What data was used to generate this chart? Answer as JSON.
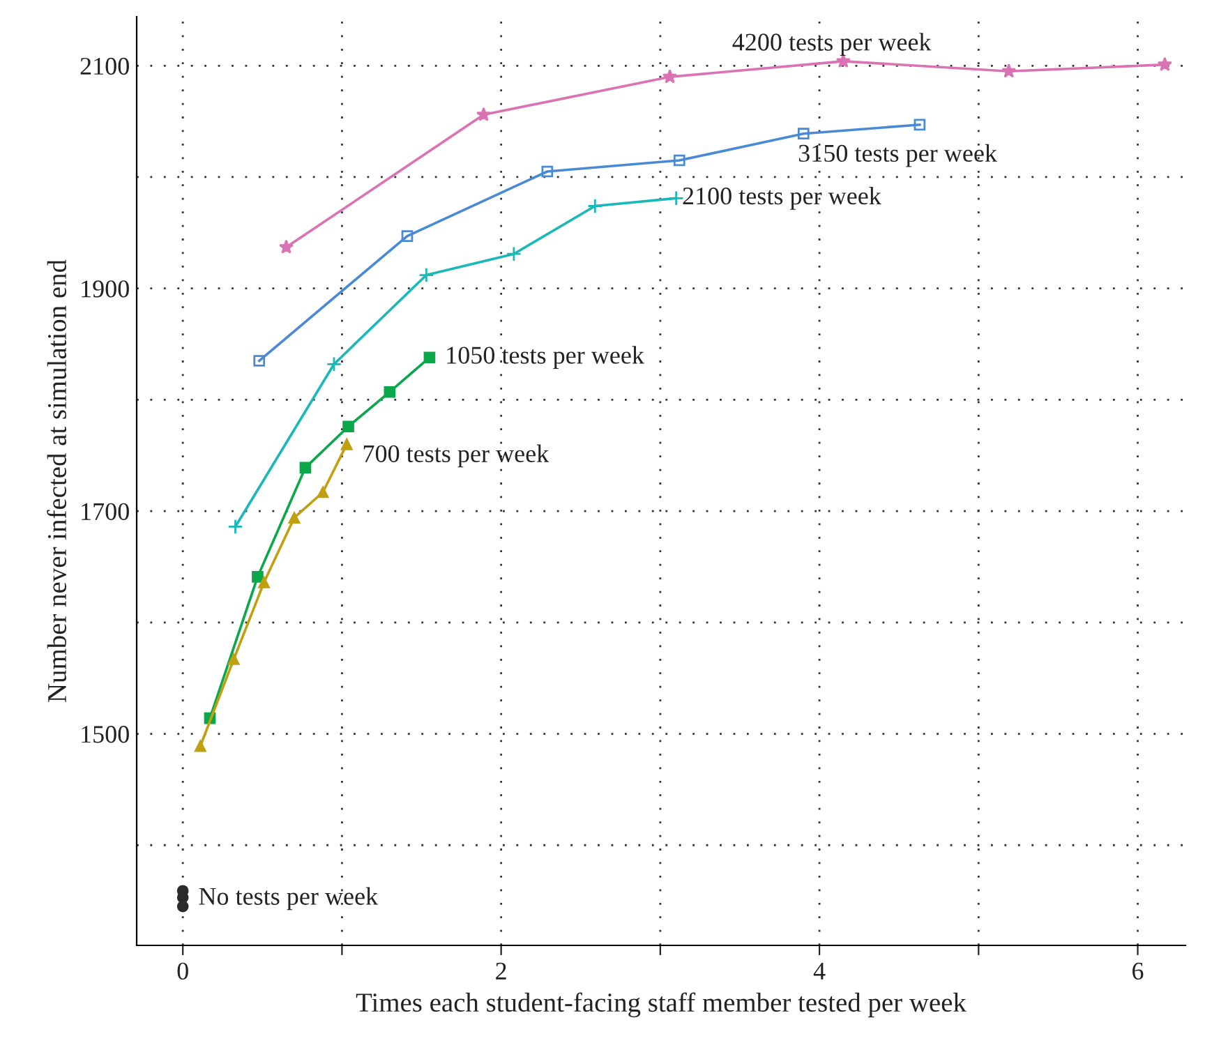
{
  "chart_data": {
    "type": "line",
    "xlabel": "Times each student-facing staff member tested per week",
    "ylabel": "Number never infected at simulation end",
    "xlim": [
      -0.29,
      6.3
    ],
    "ylim": [
      1310,
      2144
    ],
    "xticks": [
      0,
      {
        "value": 1,
        "label": null
      },
      2,
      {
        "value": 3,
        "label": null
      },
      4,
      {
        "value": 5,
        "label": null
      },
      6
    ],
    "yticks": [
      {
        "value": 1400,
        "label": null
      },
      1500,
      {
        "value": 1600,
        "label": null
      },
      1700,
      {
        "value": 1800,
        "label": null
      },
      1900,
      {
        "value": 2000,
        "label": null
      },
      2100
    ],
    "grid": true,
    "legend": false,
    "series": [
      {
        "name": "4200 tests per week",
        "color": "#d973b3",
        "marker": "star",
        "x": [
          0.65,
          1.89,
          3.06,
          4.15,
          5.19,
          6.17
        ],
        "values": [
          1937,
          2056,
          2090,
          2104,
          2095,
          2101
        ]
      },
      {
        "name": "3150 tests per week",
        "color": "#4a8ad4",
        "marker": "square",
        "x": [
          0.48,
          1.41,
          2.29,
          3.12,
          3.9,
          4.63
        ],
        "values": [
          1835,
          1947,
          2005,
          2015,
          2039,
          2047
        ]
      },
      {
        "name": "2100 tests per week",
        "color": "#1ab8b8",
        "marker": "cross",
        "x": [
          0.33,
          0.95,
          1.53,
          2.08,
          2.59,
          3.1
        ],
        "values": [
          1686,
          1832,
          1912,
          1931,
          1974,
          1981
        ]
      },
      {
        "name": "1050 tests per week",
        "color": "#0aa84a",
        "marker": "square",
        "x": [
          0.17,
          0.47,
          0.77,
          1.04,
          1.3,
          1.55
        ],
        "values": [
          1514,
          1641,
          1739,
          1776,
          1807,
          1838
        ]
      },
      {
        "name": "700 tests per week",
        "color": "#c0a010",
        "marker": "triangle",
        "x": [
          0.11,
          0.32,
          0.51,
          0.7,
          0.88,
          1.03
        ],
        "values": [
          1489,
          1567,
          1636,
          1694,
          1717,
          1760
        ]
      },
      {
        "name": "No tests per week",
        "type": "scatter",
        "color": "#2a2a2a",
        "marker": "circle",
        "x": [
          0,
          0,
          0
        ],
        "values": [
          1359,
          1353,
          1345
        ]
      }
    ]
  }
}
